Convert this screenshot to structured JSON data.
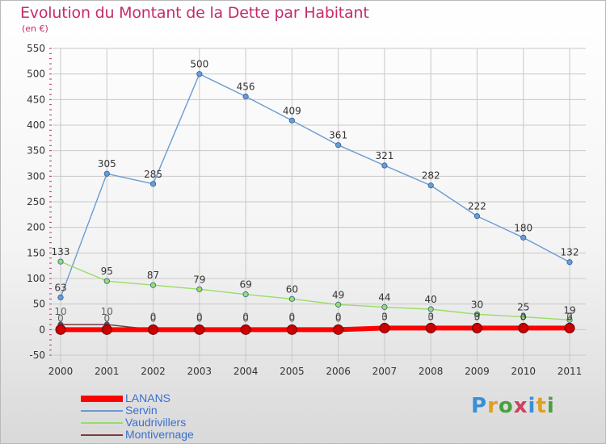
{
  "title": "Evolution du Montant de la Dette par Habitant",
  "subtitle": "(en €)",
  "logo_text": "Proxiti",
  "colors": {
    "title": "#c52b6b",
    "grid": "#c8c8c8",
    "axis_text": "#333333"
  },
  "chart_data": {
    "type": "line",
    "title": "Evolution du Montant de la Dette par Habitant",
    "subtitle": "(en €)",
    "xlabel": "",
    "ylabel": "",
    "ylim": [
      -50,
      550
    ],
    "yticks": [
      -50,
      0,
      50,
      100,
      150,
      200,
      250,
      300,
      350,
      400,
      450,
      500,
      550
    ],
    "grid": true,
    "legend_position": "bottom-left",
    "x": [
      "2000",
      "2001",
      "2002",
      "2003",
      "2004",
      "2005",
      "2006",
      "2007",
      "2008",
      "2009",
      "2010",
      "2011"
    ],
    "series": [
      {
        "name": "LANANS",
        "color": "#ff0000",
        "values": [
          0,
          0,
          0,
          0,
          0,
          0,
          0,
          3,
          3,
          3,
          3,
          3
        ],
        "labels": [
          "0",
          "0",
          "0",
          "0",
          "0",
          "0",
          "0",
          "3",
          "3",
          "3",
          "3",
          "3"
        ]
      },
      {
        "name": "Servin",
        "color": "#6b9bd2",
        "values": [
          63,
          305,
          285,
          500,
          456,
          409,
          361,
          321,
          282,
          222,
          180,
          132
        ],
        "labels": [
          "63",
          "305",
          "285",
          "500",
          "456",
          "409",
          "361",
          "321",
          "282",
          "222",
          "180",
          "132"
        ]
      },
      {
        "name": "Vaudrivillers",
        "color": "#99dd66",
        "values": [
          133,
          95,
          87,
          79,
          69,
          60,
          49,
          44,
          40,
          30,
          25,
          19
        ],
        "labels": [
          "133",
          "95",
          "87",
          "79",
          "69",
          "60",
          "49",
          "44",
          "40",
          "30",
          "25",
          "19"
        ]
      },
      {
        "name": "Montivernage",
        "color": "#7a3a3a",
        "values": [
          10,
          10,
          0,
          0,
          0,
          0,
          0,
          0,
          0,
          0,
          0,
          0
        ],
        "labels": [
          "10",
          "10",
          "0",
          "0",
          "0",
          "0",
          "0",
          "0",
          "0",
          "0",
          "0",
          "0"
        ]
      }
    ]
  }
}
